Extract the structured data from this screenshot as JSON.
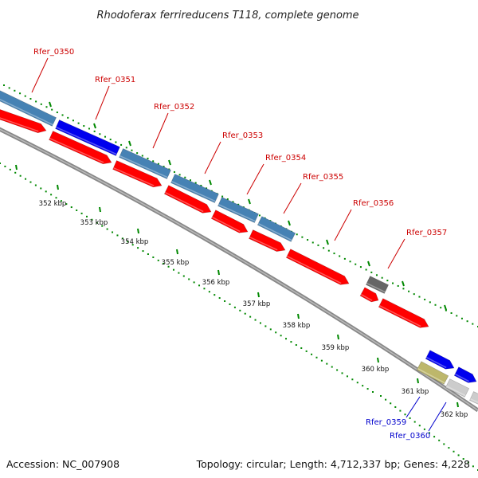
{
  "title": "Rhodoferax ferrireducens T118, complete genome",
  "footer": {
    "accession": "Accession: NC_007908",
    "summary": "Topology: circular; Length: 4,712,337 bp; Genes: 4,228"
  },
  "colors": {
    "red_gene": "#ff0000",
    "blue_gene": "#0000ee",
    "steelblue_gene": "#4682b4",
    "gray_gene": "#666666",
    "light_gray_gene": "#cccccc",
    "khaki_gene": "#bdb76b",
    "backbone": "#888888",
    "green_dots": "#008800",
    "red_label": "#cc0000",
    "blue_label": "#0000cc"
  },
  "ticks": [
    "352 kbp",
    "353 kbp",
    "354 kbp",
    "355 kbp",
    "356 kbp",
    "357 kbp",
    "358 kbp",
    "359 kbp",
    "360 kbp",
    "361 kbp",
    "362 kbp"
  ],
  "gene_labels": [
    {
      "name": "Rfer_0350",
      "color": "red"
    },
    {
      "name": "Rfer_0351",
      "color": "red"
    },
    {
      "name": "Rfer_0352",
      "color": "red"
    },
    {
      "name": "Rfer_0353",
      "color": "red"
    },
    {
      "name": "Rfer_0354",
      "color": "red"
    },
    {
      "name": "Rfer_0355",
      "color": "red"
    },
    {
      "name": "Rfer_0356",
      "color": "red"
    },
    {
      "name": "Rfer_0357",
      "color": "red"
    },
    {
      "name": "Rfer_0359",
      "color": "blue"
    },
    {
      "name": "Rfer_0360",
      "color": "blue"
    }
  ]
}
